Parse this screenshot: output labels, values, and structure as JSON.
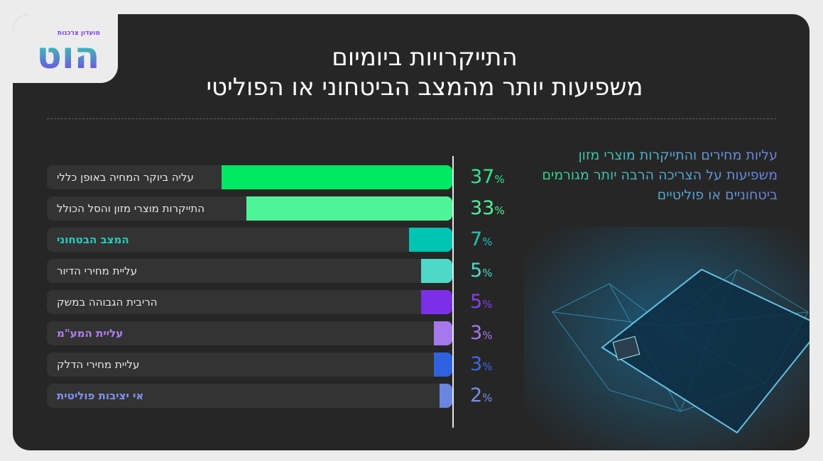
{
  "logo": {
    "tagline": "מועדון צרכנות",
    "name": "הוט"
  },
  "title": {
    "line1": "התייקרויות ביומיום",
    "line2": "משפיעות יותר מהמצב הביטחוני או הפוליטי"
  },
  "note": "עליות מחירים והתייקרות מוצרי מזון משפיעות על הצריכה הרבה יותר מגורמים ביטחוניים או פוליטיים",
  "chart_data": {
    "type": "bar",
    "orientation": "horizontal",
    "unit": "%",
    "categories": [
      "עליה ביוקר המחיה באופן כללי",
      "התייקרות מוצרי מזון והסל הכולל",
      "המצב הבטחוני",
      "עליית מחירי הדיור",
      "הריבית הגבוהה במשק",
      "עליית המע\"מ",
      "עליית מחירי הדלק",
      "אי יציבות פוליטית"
    ],
    "values": [
      37,
      33,
      7,
      5,
      5,
      3,
      3,
      2
    ],
    "colors": [
      "#00e864",
      "#4ef598",
      "#00c4b4",
      "#4ed8c8",
      "#7b2fe6",
      "#a678ee",
      "#2f62e0",
      "#6a86e0"
    ],
    "label_colors": [
      "#e8e8e8",
      "#e8e8e8",
      "#1fd0c0",
      "#e8e8e8",
      "#e8e8e8",
      "#b07ef0",
      "#e8e8e8",
      "#7f92f0"
    ],
    "bold": [
      false,
      false,
      true,
      false,
      false,
      true,
      false,
      true
    ],
    "pct_colors": [
      "#2ee88a",
      "#4ef598",
      "#1fc6b8",
      "#4ed8c8",
      "#8a3ee8",
      "#a678ee",
      "#3a6ae6",
      "#7890e8"
    ],
    "xlim": [
      0,
      65
    ]
  }
}
